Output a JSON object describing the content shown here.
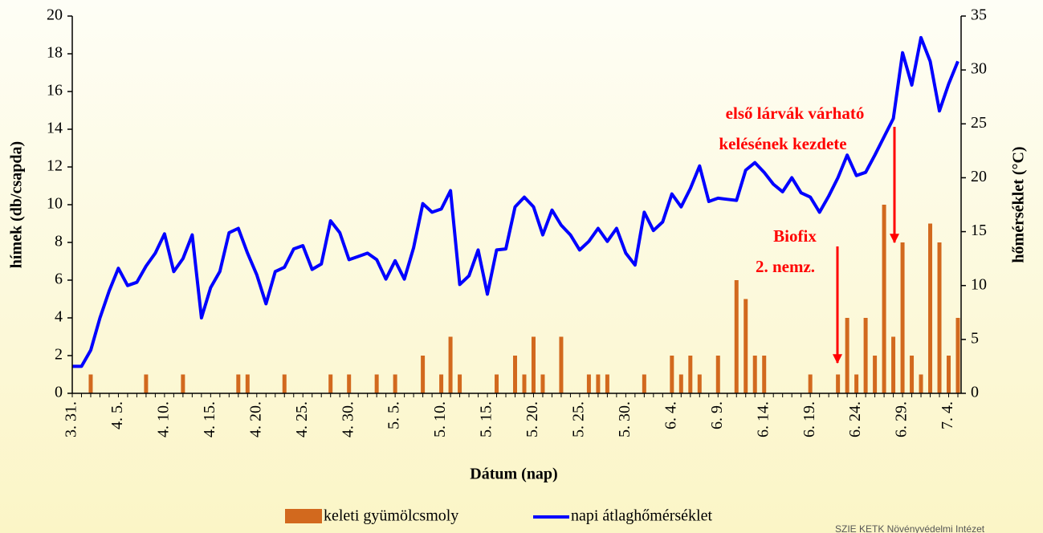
{
  "chart_data": {
    "type": "bar_line",
    "x_label": "Dátum (nap)",
    "y_label": "hímek (db/csapda)",
    "y2_label": "hőmérséklet (°C)",
    "categories": [
      "3. 31.",
      null,
      null,
      null,
      null,
      "4. 5.",
      null,
      null,
      null,
      null,
      "4. 10.",
      null,
      null,
      null,
      null,
      "4. 15.",
      null,
      null,
      null,
      null,
      "4. 20.",
      null,
      null,
      null,
      null,
      "4. 25.",
      null,
      null,
      null,
      null,
      "4. 30.",
      null,
      null,
      null,
      null,
      "5. 5.",
      null,
      null,
      null,
      null,
      "5. 10.",
      null,
      null,
      null,
      null,
      "5. 15.",
      null,
      null,
      null,
      null,
      "5. 20.",
      null,
      null,
      null,
      null,
      "5. 25.",
      null,
      null,
      null,
      null,
      "5. 30.",
      null,
      null,
      null,
      null,
      "6. 4.",
      null,
      null,
      null,
      null,
      "6. 9.",
      null,
      null,
      null,
      null,
      "6. 14.",
      null,
      null,
      null,
      null,
      "6. 19.",
      null,
      null,
      null,
      null,
      "6. 24.",
      null,
      null,
      null,
      null,
      "6. 29.",
      null,
      null,
      null,
      null,
      "7. 4.",
      null
    ],
    "series": [
      {
        "name": "keleti gyümölcsmoly",
        "type": "bar",
        "color": "#d2691e",
        "axis": "y",
        "values": [
          0,
          0,
          1,
          0,
          0,
          0,
          0,
          0,
          1,
          0,
          0,
          0,
          1,
          0,
          0,
          0,
          0,
          0,
          1,
          1,
          0,
          0,
          0,
          1,
          0,
          0,
          0,
          0,
          1,
          0,
          1,
          0,
          0,
          1,
          0,
          1,
          0,
          0,
          2,
          0,
          1,
          3,
          1,
          0,
          0,
          0,
          1,
          0,
          2,
          1,
          3,
          1,
          0,
          3,
          0,
          0,
          1,
          1,
          1,
          0,
          0,
          0,
          1,
          0,
          0,
          2,
          1,
          2,
          1,
          0,
          2,
          0,
          6,
          5,
          2,
          2,
          0,
          0,
          0,
          0,
          1,
          0,
          0,
          1,
          4,
          1,
          4,
          2,
          10,
          3,
          8,
          2,
          1,
          9,
          8,
          2,
          4
        ]
      },
      {
        "name": "napi átlaghőmérséklet",
        "type": "line",
        "color": "#0000ff",
        "axis": "y2",
        "values": [
          2.5,
          2.5,
          4,
          7,
          9.5,
          11.6,
          10,
          10.3,
          11.8,
          13,
          14.8,
          11.3,
          12.5,
          14.7,
          7,
          9.8,
          11.3,
          14.9,
          15.3,
          13,
          11,
          8.3,
          11.3,
          11.7,
          13.4,
          13.7,
          11.5,
          12,
          16,
          14.9,
          12.4,
          12.7,
          13,
          12.4,
          10.6,
          12.3,
          10.6,
          13.5,
          17.6,
          16.8,
          17.1,
          18.8,
          10.1,
          10.9,
          13.3,
          9.2,
          13.3,
          13.4,
          17.3,
          18.2,
          17.3,
          14.7,
          17,
          15.6,
          14.7,
          13.3,
          14.1,
          15.3,
          14.1,
          15.3,
          13,
          11.9,
          16.8,
          15.1,
          15.9,
          18.5,
          17.3,
          19,
          21.1,
          17.8,
          18.1,
          18,
          17.9,
          20.7,
          21.4,
          20.5,
          19.4,
          18.7,
          20,
          18.6,
          18.2,
          16.8,
          18.3,
          20,
          22.1,
          20.2,
          20.5,
          22.1,
          23.8,
          25.5,
          31.6,
          28.6,
          33,
          30.8,
          26.2,
          28.7,
          30.8
        ]
      }
    ],
    "ylim": [
      0,
      20
    ],
    "yticks": [
      0,
      2,
      4,
      6,
      8,
      10,
      12,
      14,
      16,
      18,
      20
    ],
    "y2lim": [
      0,
      35
    ],
    "y2ticks": [
      0,
      5,
      10,
      15,
      20,
      25,
      30,
      35
    ],
    "annotations": [
      "első lárvák várható",
      "kelésének kezdete",
      "Biofix",
      "2. nemz."
    ],
    "source": "SZIE KETK Növényvédelmi Intézet"
  }
}
